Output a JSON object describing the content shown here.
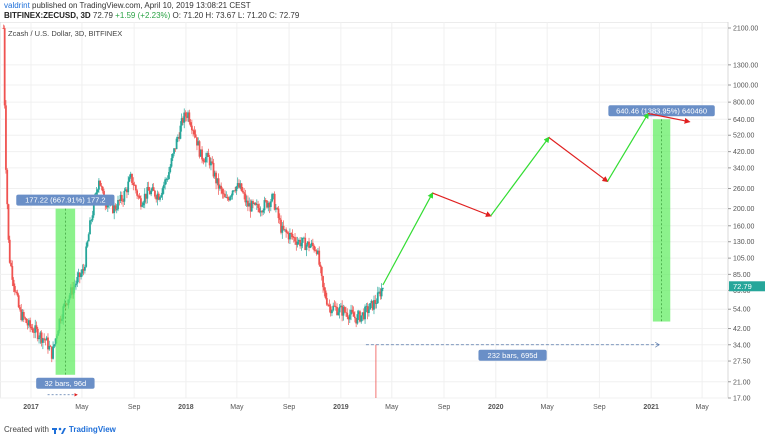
{
  "header": {
    "line1_user": "valdrint",
    "line1_rest": " published on TradingView.com, April 10, 2019 13:08:21 CEST",
    "symbol": "BITFINEX:ZECUSD, 3D",
    "ohlc_o": " 72.79 ",
    "ohlc_change": "+1.59 (+2.23%)",
    "ohlc_rest": " O: 71.20  H: 73.67  L: 71.20  C: 72.79"
  },
  "footer": {
    "created_with": "Created with",
    "brand": "TradingView"
  },
  "colors": {
    "up": "#26a69a",
    "down": "#ef5350",
    "green_arrow": "#33dd33",
    "red_arrow": "#e02020",
    "box": "#66ee66",
    "label_bg": "#6a8fc7"
  },
  "chart_data": {
    "type": "candlestick",
    "title": "Zcash / U.S. Dollar, 3D, BITFINEX",
    "y_scale": "log",
    "y_ticks": [
      "2100.00",
      "1300.00",
      "1000.00",
      "800.00",
      "640.00",
      "520.00",
      "420.00",
      "340.00",
      "260.00",
      "200.00",
      "160.00",
      "130.00",
      "105.00",
      "85.00",
      "69.00",
      "54.00",
      "42.00",
      "34.00",
      "27.50",
      "21.00",
      "17.00"
    ],
    "x_ticks": [
      "2017",
      "May",
      "Sep",
      "2018",
      "May",
      "Sep",
      "2019",
      "May",
      "Sep",
      "2020",
      "May",
      "Sep",
      "2021",
      "May"
    ],
    "price_path": [
      [
        "2016-10-28",
        2100
      ],
      [
        "2016-11-02",
        420
      ],
      [
        "2016-11-10",
        110
      ],
      [
        "2016-11-20",
        80
      ],
      [
        "2016-12-05",
        52
      ],
      [
        "2016-12-25",
        44
      ],
      [
        "2017-01-15",
        40
      ],
      [
        "2017-02-05",
        36
      ],
      [
        "2017-02-20",
        30
      ],
      [
        "2017-03-10",
        48
      ],
      [
        "2017-03-25",
        60
      ],
      [
        "2017-04-15",
        75
      ],
      [
        "2017-05-05",
        90
      ],
      [
        "2017-05-20",
        160
      ],
      [
        "2017-06-10",
        300
      ],
      [
        "2017-06-20",
        230
      ],
      [
        "2017-07-15",
        200
      ],
      [
        "2017-08-05",
        230
      ],
      [
        "2017-08-25",
        300
      ],
      [
        "2017-09-15",
        220
      ],
      [
        "2017-10-05",
        250
      ],
      [
        "2017-10-30",
        240
      ],
      [
        "2017-11-20",
        310
      ],
      [
        "2017-12-10",
        480
      ],
      [
        "2017-12-25",
        640
      ],
      [
        "2018-01-05",
        700
      ],
      [
        "2018-01-20",
        560
      ],
      [
        "2018-02-05",
        400
      ],
      [
        "2018-02-25",
        380
      ],
      [
        "2018-03-15",
        280
      ],
      [
        "2018-04-05",
        220
      ],
      [
        "2018-04-25",
        270
      ],
      [
        "2018-05-10",
        260
      ],
      [
        "2018-05-25",
        210
      ],
      [
        "2018-06-15",
        200
      ],
      [
        "2018-07-05",
        210
      ],
      [
        "2018-07-25",
        230
      ],
      [
        "2018-08-15",
        150
      ],
      [
        "2018-09-05",
        140
      ],
      [
        "2018-09-25",
        130
      ],
      [
        "2018-10-15",
        125
      ],
      [
        "2018-11-05",
        120
      ],
      [
        "2018-11-20",
        70
      ],
      [
        "2018-12-05",
        56
      ],
      [
        "2018-12-25",
        54
      ],
      [
        "2019-01-15",
        52
      ],
      [
        "2019-02-05",
        48
      ],
      [
        "2019-02-20",
        50
      ],
      [
        "2019-03-10",
        55
      ],
      [
        "2019-03-25",
        60
      ],
      [
        "2019-04-10",
        72.79
      ]
    ],
    "annotations": [
      {
        "type": "range",
        "label": "177.22 (667.91%) 177.2",
        "bars_label": "32 bars, 96d",
        "x_from": "2017-02-28",
        "x_to": "2017-04-15",
        "y_from": 23,
        "y_to": 200
      },
      {
        "type": "range",
        "label": "640.46 (1383.95%) 640460",
        "bars_label": "",
        "x_from": "2021-01-05",
        "x_to": "2021-02-15",
        "y_from": 46,
        "y_to": 640
      },
      {
        "type": "measure",
        "label": "232 bars, 695d",
        "x_from": "2019-03-01",
        "x_to": "2021-01-20",
        "y": 34
      },
      {
        "type": "arrow",
        "color": "green",
        "from": [
          "2019-04-10",
          74
        ],
        "to": [
          "2019-08-05",
          245
        ]
      },
      {
        "type": "arrow",
        "color": "red",
        "from": [
          "2019-08-05",
          245
        ],
        "to": [
          "2019-12-20",
          182
        ]
      },
      {
        "type": "arrow",
        "color": "green",
        "from": [
          "2019-12-20",
          182
        ],
        "to": [
          "2020-05-05",
          505
        ]
      },
      {
        "type": "arrow",
        "color": "red",
        "from": [
          "2020-05-05",
          505
        ],
        "to": [
          "2020-09-20",
          285
        ]
      },
      {
        "type": "arrow",
        "color": "green",
        "from": [
          "2020-09-20",
          285
        ],
        "to": [
          "2020-12-25",
          690
        ]
      },
      {
        "type": "arrow",
        "color": "red",
        "from": [
          "2020-12-25",
          690
        ],
        "to": [
          "2021-04-01",
          620
        ]
      }
    ]
  }
}
